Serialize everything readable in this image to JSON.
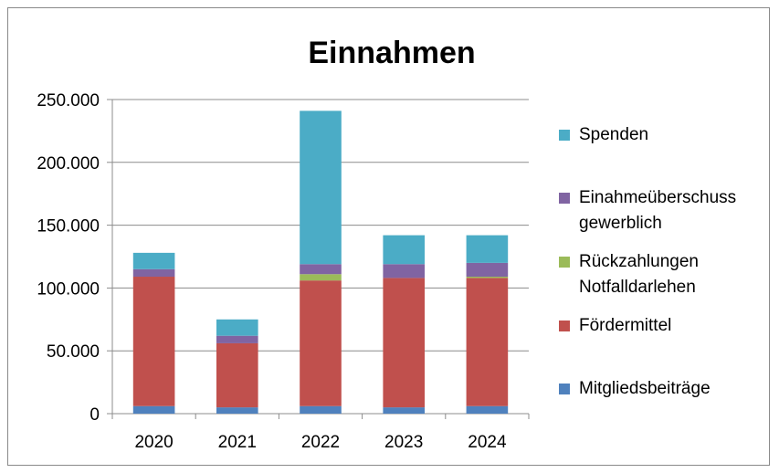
{
  "chart_data": {
    "type": "bar",
    "stacked": true,
    "title": "Einnahmen",
    "xlabel": "",
    "ylabel": "",
    "categories": [
      "2020",
      "2021",
      "2022",
      "2023",
      "2024"
    ],
    "ylim": [
      0,
      250000
    ],
    "yticks": [
      0,
      50000,
      100000,
      150000,
      200000,
      250000
    ],
    "ytick_labels": [
      "0",
      "50.000",
      "100.000",
      "150.000",
      "200.000",
      "250.000"
    ],
    "grid": "horizontal",
    "legend_position": "right",
    "series": [
      {
        "name": "Mitgliedsbeiträge",
        "color": "#4F81BD",
        "values": [
          6000,
          5000,
          6000,
          5000,
          6000
        ]
      },
      {
        "name": "Fördermittel",
        "color": "#C0504D",
        "values": [
          103000,
          51000,
          100000,
          103000,
          102000
        ]
      },
      {
        "name": "Rückzahlungen Notfalldarlehen",
        "color": "#9BBB59",
        "values": [
          0,
          0,
          5000,
          0,
          1000
        ]
      },
      {
        "name": "Einahmeüberschuss gewerblich",
        "color": "#8064A2",
        "values": [
          6000,
          6000,
          8000,
          11000,
          11000
        ]
      },
      {
        "name": "Spenden",
        "color": "#4BACC6",
        "values": [
          13000,
          13000,
          122000,
          23000,
          22000
        ]
      }
    ],
    "legend_lines": [
      [
        "Spenden"
      ],
      [
        "Einahmeüberschuss",
        "gewerblich"
      ],
      [
        "Rückzahlungen",
        "Notfalldarlehen"
      ],
      [
        "Fördermittel"
      ],
      [
        "Mitgliedsbeiträge"
      ]
    ]
  }
}
